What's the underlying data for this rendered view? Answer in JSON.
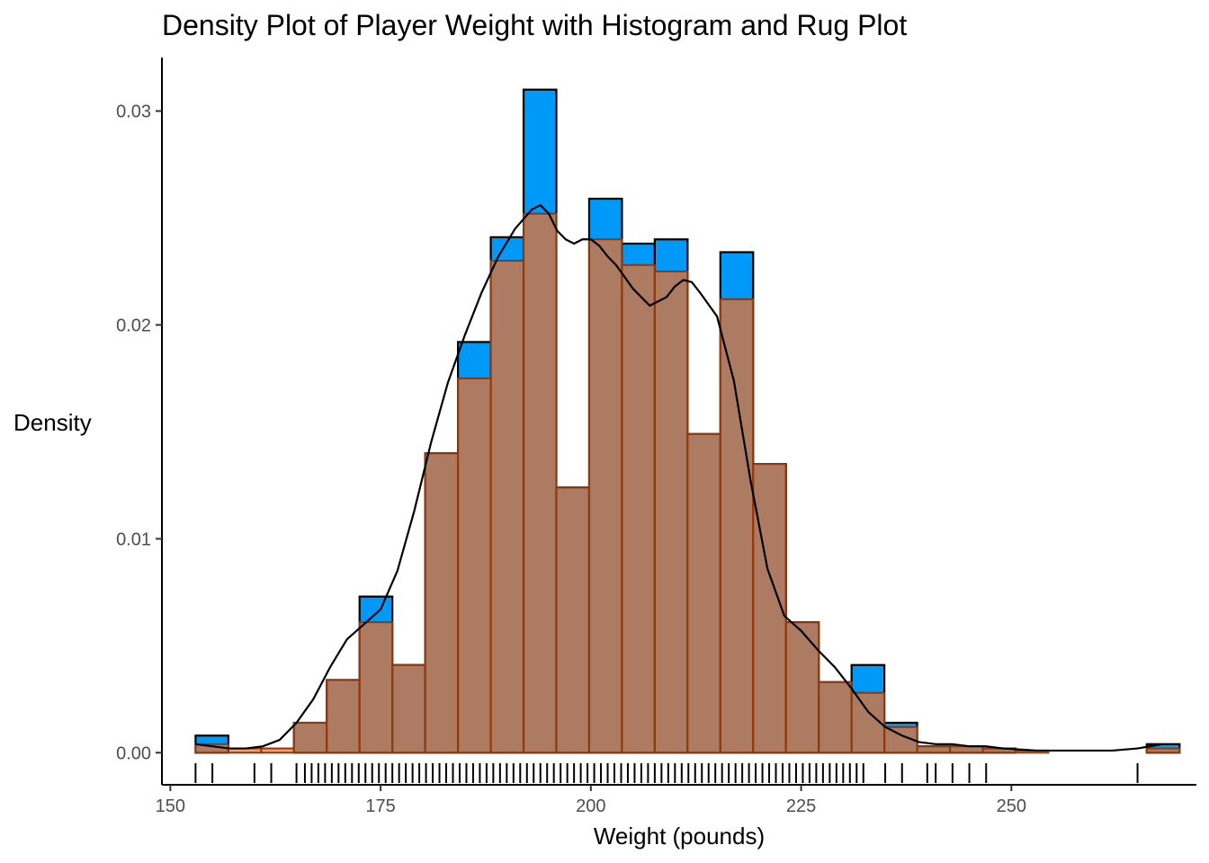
{
  "chart_data": {
    "type": "histogram",
    "title": "Density Plot of Player Weight with Histogram and Rug Plot",
    "xlabel": "Weight (pounds)",
    "ylabel": "Density",
    "xlim": [
      149,
      272
    ],
    "ylim": [
      -0.0015,
      0.0325
    ],
    "x_ticks": [
      150,
      175,
      200,
      225,
      250
    ],
    "x_tick_labels": [
      "150",
      "175",
      "200",
      "225",
      "250"
    ],
    "y_ticks": [
      0.0,
      0.01,
      0.02,
      0.03
    ],
    "y_tick_labels": [
      "0.00",
      "0.01",
      "0.02",
      "0.03"
    ],
    "grid": false,
    "legend": "none",
    "bin_edges": [
      153.0,
      156.9,
      160.8,
      164.7,
      168.6,
      172.5,
      176.4,
      180.3,
      184.2,
      188.1,
      192.0,
      195.9,
      199.8,
      203.7,
      207.6,
      211.5,
      215.4,
      219.3,
      223.2,
      227.1,
      231.0,
      234.9,
      238.8,
      242.7,
      246.6,
      250.5,
      254.4,
      258.3,
      262.2,
      266.1,
      270.0
    ],
    "series": [
      {
        "kind": "histogram",
        "fill": "#0099f8",
        "stroke": "#000000",
        "values": [
          0.0008,
          0.0,
          0.0,
          0.0014,
          0.0034,
          0.0073,
          0.0041,
          0.014,
          0.0192,
          0.0241,
          0.031,
          0.0124,
          0.0259,
          0.0238,
          0.024,
          0.0149,
          0.0234,
          0.0135,
          0.0061,
          0.0033,
          0.0041,
          0.0014,
          0.0003,
          0.0003,
          0.0002,
          0.0,
          0.0,
          0.0,
          0.0,
          0.0004
        ]
      },
      {
        "kind": "histogram",
        "fill": "#ff6b1a",
        "fill_opacity": 0.68,
        "stroke": "#8b3a0f",
        "values": [
          0.0004,
          0.0002,
          0.0002,
          0.0014,
          0.0034,
          0.0061,
          0.0041,
          0.014,
          0.0175,
          0.023,
          0.0252,
          0.0124,
          0.024,
          0.0228,
          0.0225,
          0.0149,
          0.0212,
          0.0135,
          0.0061,
          0.0033,
          0.0028,
          0.0012,
          0.0003,
          0.0003,
          0.0002,
          0.0001,
          0.0,
          0.0,
          0.0,
          0.0002
        ]
      },
      {
        "kind": "density",
        "stroke": "#000000",
        "x": [
          153,
          155,
          157,
          159,
          161,
          163,
          165,
          167,
          169,
          171,
          173,
          175,
          177,
          179,
          181,
          183,
          185,
          187,
          189,
          191,
          193,
          194,
          195,
          196,
          197,
          198,
          199,
          200,
          201,
          202,
          203,
          205,
          207,
          209,
          210,
          211,
          212,
          213,
          215,
          217,
          219,
          221,
          223,
          225,
          227,
          229,
          231,
          233,
          235,
          237,
          239,
          241,
          243,
          245,
          247,
          249,
          253,
          258,
          262,
          265,
          268
        ],
        "y": [
          0.0004,
          0.0003,
          0.0002,
          0.0002,
          0.0003,
          0.0006,
          0.0014,
          0.0025,
          0.004,
          0.0053,
          0.006,
          0.0067,
          0.0085,
          0.0113,
          0.0145,
          0.0173,
          0.0195,
          0.0215,
          0.0232,
          0.0245,
          0.0254,
          0.0256,
          0.0252,
          0.0244,
          0.024,
          0.0238,
          0.024,
          0.024,
          0.0237,
          0.0232,
          0.0228,
          0.0217,
          0.0209,
          0.0213,
          0.0218,
          0.0221,
          0.022,
          0.0215,
          0.0204,
          0.0174,
          0.0127,
          0.0086,
          0.0064,
          0.0057,
          0.0048,
          0.004,
          0.003,
          0.0019,
          0.0012,
          0.0008,
          0.0005,
          0.0004,
          0.0004,
          0.0003,
          0.0003,
          0.0002,
          0.0001,
          0.0001,
          0.0001,
          0.0002,
          0.0004
        ]
      }
    ],
    "rug": [
      153,
      155,
      160,
      162,
      165,
      166,
      166.8,
      167.6,
      168.4,
      169.2,
      170,
      170.8,
      171.6,
      172.4,
      173.2,
      174,
      174.8,
      175.6,
      176.4,
      177.2,
      178,
      178.8,
      179.6,
      180.4,
      181.2,
      182,
      182.8,
      183.6,
      184.4,
      185.2,
      186,
      186.8,
      187.6,
      188.4,
      189.2,
      190,
      190.8,
      191.6,
      192.4,
      193.2,
      194,
      194.8,
      195.6,
      196.4,
      197.2,
      198,
      198.8,
      199.6,
      200.4,
      201.2,
      202,
      202.8,
      203.6,
      204.4,
      205.2,
      206,
      206.8,
      207.6,
      208.4,
      209.2,
      210,
      210.8,
      211.6,
      212.4,
      213.2,
      214,
      214.8,
      215.6,
      216.4,
      217.2,
      218,
      218.8,
      219.6,
      220.4,
      221.2,
      222,
      222.8,
      223.6,
      224.4,
      225.2,
      226,
      226.8,
      227.6,
      228.4,
      229.2,
      230,
      230.8,
      231.6,
      232.4,
      235,
      237,
      240,
      241,
      243,
      245,
      247,
      265
    ]
  }
}
